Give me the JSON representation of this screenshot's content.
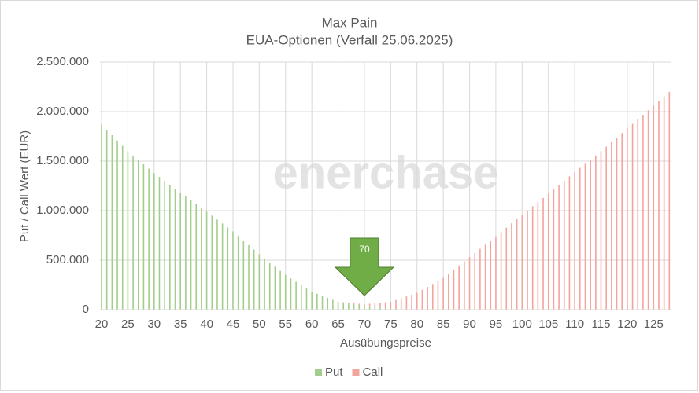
{
  "chart_data": {
    "type": "stacked_bar",
    "title": "Max Pain",
    "subtitle": "EUA-Optionen (Verfall 25.06.2025)",
    "x_label": "Ausübungspreise",
    "y_label": "Put / Call Wert (EUR)",
    "watermark": "enerchase",
    "max_pain": 70,
    "grid": true,
    "legend": "bottom",
    "x": [
      20,
      21,
      22,
      23,
      24,
      25,
      26,
      27,
      28,
      29,
      30,
      31,
      32,
      33,
      34,
      35,
      36,
      37,
      38,
      39,
      40,
      41,
      42,
      43,
      44,
      45,
      46,
      47,
      48,
      49,
      50,
      51,
      52,
      53,
      54,
      55,
      56,
      57,
      58,
      59,
      60,
      61,
      62,
      63,
      64,
      65,
      66,
      67,
      68,
      69,
      70,
      71,
      72,
      73,
      74,
      75,
      76,
      77,
      78,
      79,
      80,
      81,
      82,
      83,
      84,
      85,
      86,
      87,
      88,
      89,
      90,
      91,
      92,
      93,
      94,
      95,
      96,
      97,
      98,
      99,
      100,
      101,
      102,
      103,
      104,
      105,
      106,
      107,
      108,
      109,
      110,
      111,
      112,
      113,
      114,
      115,
      116,
      117,
      118,
      119,
      120,
      121,
      122,
      123,
      124,
      125,
      126,
      127,
      128
    ],
    "xlim": [
      19.7,
      128.4
    ],
    "xticks": [
      20,
      25,
      30,
      35,
      40,
      45,
      50,
      55,
      60,
      65,
      70,
      75,
      80,
      85,
      90,
      95,
      100,
      105,
      110,
      115,
      120,
      125
    ],
    "ylim": [
      0,
      2500000
    ],
    "yticks": [
      0,
      {
        "value": 500000,
        "label": "500.000"
      },
      {
        "value": 1000000,
        "label": "1.000.000"
      },
      {
        "value": 1500000,
        "label": "1.500.000"
      },
      {
        "value": 2000000,
        "label": "2.000.000"
      },
      {
        "value": 2500000,
        "label": "2.500.000"
      }
    ],
    "series": [
      {
        "name": "Put",
        "color": "#a3cd8a",
        "values": [
          1870000,
          1816000,
          1762000,
          1708000,
          1654000,
          1600000,
          1556000,
          1512000,
          1468000,
          1424000,
          1380000,
          1340000,
          1300000,
          1260000,
          1220000,
          1180000,
          1142000,
          1104000,
          1066000,
          1028000,
          990000,
          950000,
          910000,
          870000,
          830000,
          790000,
          744000,
          698000,
          652000,
          606000,
          560000,
          518000,
          476000,
          434000,
          392000,
          350000,
          316000,
          282000,
          248000,
          214000,
          180000,
          160000,
          140000,
          120000,
          100000,
          80000,
          72000,
          64000,
          56000,
          48000,
          40000,
          34000,
          28000,
          22000,
          16000,
          10000,
          8000,
          6000,
          4000,
          2000,
          0,
          0,
          0,
          0,
          0,
          0,
          0,
          0,
          0,
          0,
          0,
          0,
          0,
          0,
          0,
          0,
          0,
          0,
          0,
          0,
          0,
          0,
          0,
          0,
          0,
          0,
          0,
          0,
          0,
          0,
          0,
          0,
          0,
          0,
          0,
          0,
          0,
          0,
          0,
          0,
          0,
          0,
          0,
          0,
          0,
          0,
          0,
          0,
          0
        ]
      },
      {
        "name": "Call",
        "color": "#f2a49d",
        "values": [
          0,
          0,
          0,
          0,
          0,
          0,
          0,
          0,
          0,
          0,
          0,
          0,
          0,
          0,
          0,
          0,
          0,
          0,
          0,
          0,
          0,
          0,
          0,
          0,
          0,
          0,
          0,
          0,
          0,
          0,
          0,
          0,
          0,
          0,
          0,
          0,
          0,
          0,
          0,
          0,
          0,
          0,
          0,
          0,
          0,
          0,
          3000,
          6000,
          9000,
          12000,
          15000,
          26000,
          37000,
          48000,
          59000,
          70000,
          90000,
          110000,
          130000,
          150000,
          170000,
          200000,
          230000,
          260000,
          290000,
          320000,
          362000,
          404000,
          446000,
          488000,
          530000,
          572000,
          614000,
          656000,
          698000,
          740000,
          784000,
          828000,
          872000,
          916000,
          960000,
          1002000,
          1044000,
          1086000,
          1128000,
          1170000,
          1214000,
          1258000,
          1302000,
          1346000,
          1390000,
          1432000,
          1474000,
          1516000,
          1558000,
          1600000,
          1646000,
          1692000,
          1738000,
          1784000,
          1830000,
          1876000,
          1922000,
          1968000,
          2014000,
          2060000,
          2107000,
          2154000,
          2200000
        ]
      }
    ]
  }
}
